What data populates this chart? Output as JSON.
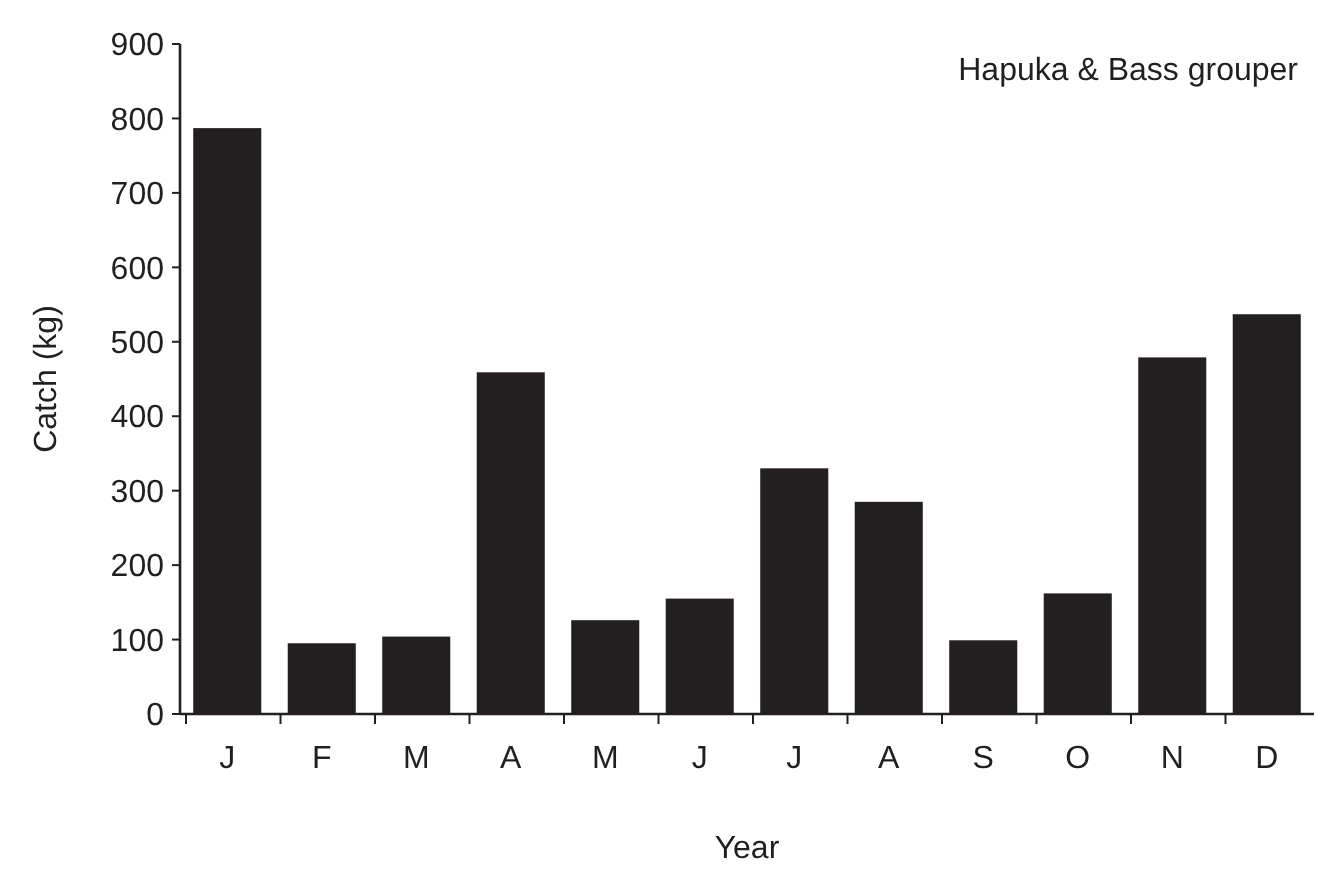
{
  "chart_data": {
    "type": "bar",
    "title": "Hapuka & Bass grouper",
    "xlabel": "Year",
    "ylabel": "Catch (kg)",
    "categories": [
      "J",
      "F",
      "M",
      "A",
      "M",
      "J",
      "J",
      "A",
      "S",
      "O",
      "N",
      "D"
    ],
    "values": [
      787,
      95,
      104,
      459,
      126,
      155,
      330,
      285,
      99,
      162,
      479,
      537
    ],
    "color": "#231f20",
    "ylim": [
      0,
      900
    ],
    "yticks": [
      0,
      100,
      200,
      300,
      400,
      500,
      600,
      700,
      800,
      900
    ],
    "grid": false
  }
}
